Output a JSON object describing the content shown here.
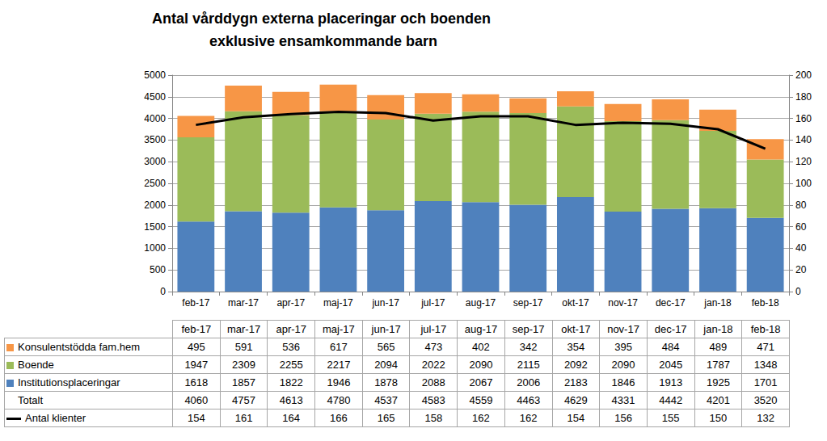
{
  "chart_data": {
    "type": "bar",
    "title": "Antal vårddygn externa placeringar och boenden exklusive ensamkommande barn",
    "categories": [
      "feb-17",
      "mar-17",
      "apr-17",
      "maj-17",
      "jun-17",
      "jul-17",
      "aug-17",
      "sep-17",
      "okt-17",
      "nov-17",
      "dec-17",
      "jan-18",
      "feb-18"
    ],
    "series": [
      {
        "name": "Konsulentstödda fam.hem",
        "type": "bar",
        "color": "#f79646",
        "values": [
          495,
          591,
          536,
          617,
          565,
          473,
          402,
          342,
          354,
          395,
          484,
          489,
          471
        ]
      },
      {
        "name": "Boende",
        "type": "bar",
        "color": "#9bbb59",
        "values": [
          1947,
          2309,
          2255,
          2217,
          2094,
          2022,
          2090,
          2115,
          2092,
          2090,
          2045,
          1787,
          1348
        ]
      },
      {
        "name": "Institutionsplaceringar",
        "type": "bar",
        "color": "#4f81bd",
        "values": [
          1618,
          1857,
          1822,
          1946,
          1878,
          2088,
          2067,
          2006,
          2183,
          1846,
          1913,
          1925,
          1701
        ]
      },
      {
        "name": "Antal klienter",
        "type": "line",
        "axis": "y2",
        "color": "#000000",
        "marker": "none",
        "values": [
          154,
          161,
          164,
          166,
          165,
          158,
          162,
          162,
          154,
          156,
          155,
          150,
          132
        ]
      }
    ],
    "totals": {
      "name": "Totalt",
      "values": [
        4060,
        4757,
        4613,
        4780,
        4537,
        4583,
        4559,
        4463,
        4629,
        4331,
        4442,
        4201,
        3520
      ]
    },
    "ylim": [
      0,
      5000
    ],
    "yticks": [
      0,
      500,
      1000,
      1500,
      2000,
      2500,
      3000,
      3500,
      4000,
      4500,
      5000
    ],
    "y2lim": [
      0,
      200
    ],
    "y2ticks": [
      0,
      20,
      40,
      60,
      80,
      100,
      120,
      140,
      160,
      180,
      200
    ],
    "stacked": true,
    "grid": true
  }
}
